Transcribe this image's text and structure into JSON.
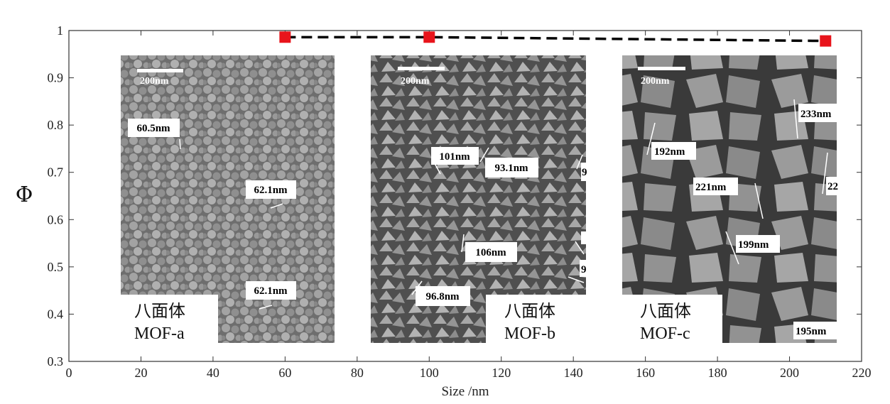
{
  "chart_data": {
    "type": "scatter",
    "title": "",
    "xlabel": "Size /nm",
    "ylabel": "Φ",
    "xlim": [
      0,
      220
    ],
    "ylim": [
      0.3,
      1.0
    ],
    "x_ticks": [
      "0",
      "20",
      "40",
      "60",
      "80",
      "100",
      "120",
      "140",
      "160",
      "180",
      "200",
      "220"
    ],
    "y_ticks": [
      "0.3",
      "0.4",
      "0.5",
      "0.6",
      "0.7",
      "0.8",
      "0.9",
      "1"
    ],
    "grid": false,
    "series": [
      {
        "color": "#e8141b",
        "line_style": "dashed",
        "line_color": "#000000",
        "x": [
          60,
          100,
          210
        ],
        "y": [
          0.986,
          0.986,
          0.978
        ]
      }
    ]
  },
  "insets": [
    {
      "scale_bar_label": "200nm",
      "caption_cn": "八面体",
      "caption_mof": "MOF-a",
      "measurements": [
        "60.5nm",
        "62.1nm",
        "62.1nm"
      ]
    },
    {
      "scale_bar_label": "200nm",
      "caption_cn": "八面体",
      "caption_mof": "MOF-b",
      "measurements": [
        "101nm",
        "93.1nm",
        "106nm",
        "96.8nm",
        "9",
        "9"
      ]
    },
    {
      "scale_bar_label": "200nm",
      "caption_cn": "八面体",
      "caption_mof": "MOF-c",
      "measurements": [
        "233nm",
        "192nm",
        "221nm",
        "22",
        "199nm",
        "195nm"
      ]
    }
  ]
}
